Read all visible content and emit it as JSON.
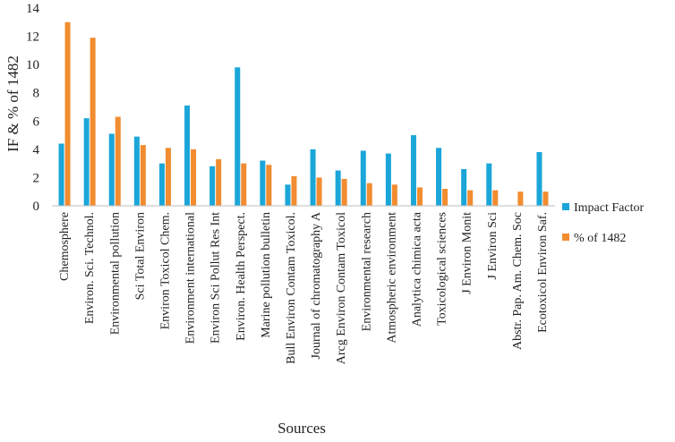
{
  "chart_data": {
    "type": "bar",
    "title": "",
    "xlabel": "Sources",
    "ylabel": "IF & % of 1482",
    "ylim": [
      0,
      14
    ],
    "yticks": [
      0,
      2,
      4,
      6,
      8,
      10,
      12,
      14
    ],
    "grid": false,
    "legend_position": "right",
    "categories": [
      "Chemosphere",
      "Environ. Sci. Technol.",
      "Environmental pollution",
      "Sci Total Environ",
      "Environ Toxicol Chem.",
      "Environment international",
      "Environ Sci Pollut Res Int",
      "Environ. Health Perspect.",
      "Marine pollution bulletin",
      "Bull Environ Contam Toxicol.",
      "Journal of chromatography A",
      "Arcg Environ Contam Toxicol",
      "Environmental research",
      "Atmospheric environment",
      "Analytica chimica acta",
      "Toxicological sciences",
      "J Environ Monit",
      "J Environ Sci",
      "Abstr. Pap. Am. Chem. Soc",
      "Ecotoxicol Environ Saf."
    ],
    "series": [
      {
        "name": "Impact Factor",
        "color": "#1BA6D9",
        "values": [
          4.4,
          6.2,
          5.1,
          4.9,
          3.0,
          7.1,
          2.8,
          9.8,
          3.2,
          1.5,
          4.0,
          2.5,
          3.9,
          3.7,
          5.0,
          4.1,
          2.6,
          3.0,
          0,
          3.8
        ]
      },
      {
        "name": "% of 1482",
        "color": "#F28C30",
        "values": [
          13.0,
          11.9,
          6.3,
          4.3,
          4.1,
          4.0,
          3.3,
          3.0,
          2.9,
          2.1,
          2.0,
          1.9,
          1.6,
          1.5,
          1.3,
          1.2,
          1.1,
          1.1,
          1.0,
          1.0
        ]
      }
    ]
  }
}
